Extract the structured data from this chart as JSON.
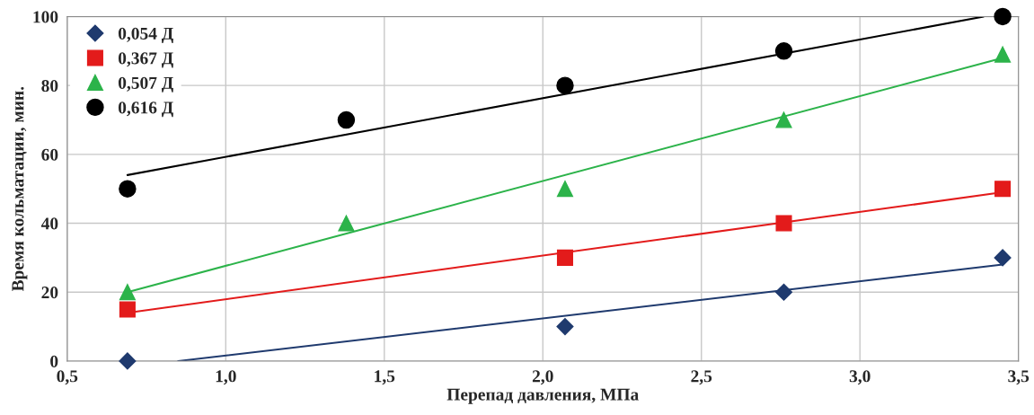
{
  "chart_data": {
    "type": "scatter",
    "xlabel": "Перепад давления, МПа",
    "ylabel": "Время кольматации, мин.",
    "xlim": [
      0.5,
      3.5
    ],
    "xticks": [
      {
        "value": 0.5,
        "label": "0,5"
      },
      {
        "value": 1.0,
        "label": "1,0"
      },
      {
        "value": 1.5,
        "label": "1,5"
      },
      {
        "value": 2.0,
        "label": "2,0"
      },
      {
        "value": 2.5,
        "label": "2,5"
      },
      {
        "value": 3.0,
        "label": "3,0"
      },
      {
        "value": 3.5,
        "label": "3,5"
      }
    ],
    "ylim": [
      0,
      100
    ],
    "yticks": [
      0,
      20,
      40,
      60,
      80,
      100
    ],
    "grid": true,
    "legend": "top left",
    "series": [
      {
        "name": "0,054 Д",
        "type": "scatter",
        "marker": "diamond",
        "color": "#1f3a6e",
        "x": [
          0.69,
          2.07,
          2.76,
          3.45
        ],
        "values": [
          0,
          10,
          20,
          30
        ]
      },
      {
        "name": "0,367 Д",
        "type": "scatter",
        "marker": "square",
        "color": "#e31b1b",
        "x": [
          0.69,
          2.07,
          2.76,
          3.45
        ],
        "values": [
          15,
          30,
          40,
          50
        ]
      },
      {
        "name": "0,507 Д",
        "type": "scatter",
        "marker": "triangle",
        "color": "#2cb34a",
        "x": [
          0.69,
          1.38,
          2.07,
          2.76,
          3.45
        ],
        "values": [
          20,
          40,
          50,
          70,
          89
        ]
      },
      {
        "name": "0,616 Д",
        "type": "scatter",
        "marker": "circle",
        "color": "#000000",
        "x": [
          0.69,
          1.38,
          2.07,
          2.76,
          3.45
        ],
        "values": [
          50,
          70,
          80,
          90,
          100
        ]
      },
      {
        "type": "line",
        "marker": "none",
        "color": "#1f3a6e",
        "x": [
          0.85,
          3.45
        ],
        "values": [
          0,
          28
        ]
      },
      {
        "type": "line",
        "marker": "none",
        "color": "#e31b1b",
        "x": [
          0.69,
          3.45
        ],
        "values": [
          14,
          49
        ]
      },
      {
        "type": "line",
        "marker": "none",
        "color": "#2cb34a",
        "x": [
          0.69,
          3.45
        ],
        "values": [
          20,
          88
        ]
      },
      {
        "type": "line",
        "marker": "none",
        "color": "#000000",
        "x": [
          0.69,
          3.39
        ],
        "values": [
          54,
          100
        ]
      }
    ]
  }
}
